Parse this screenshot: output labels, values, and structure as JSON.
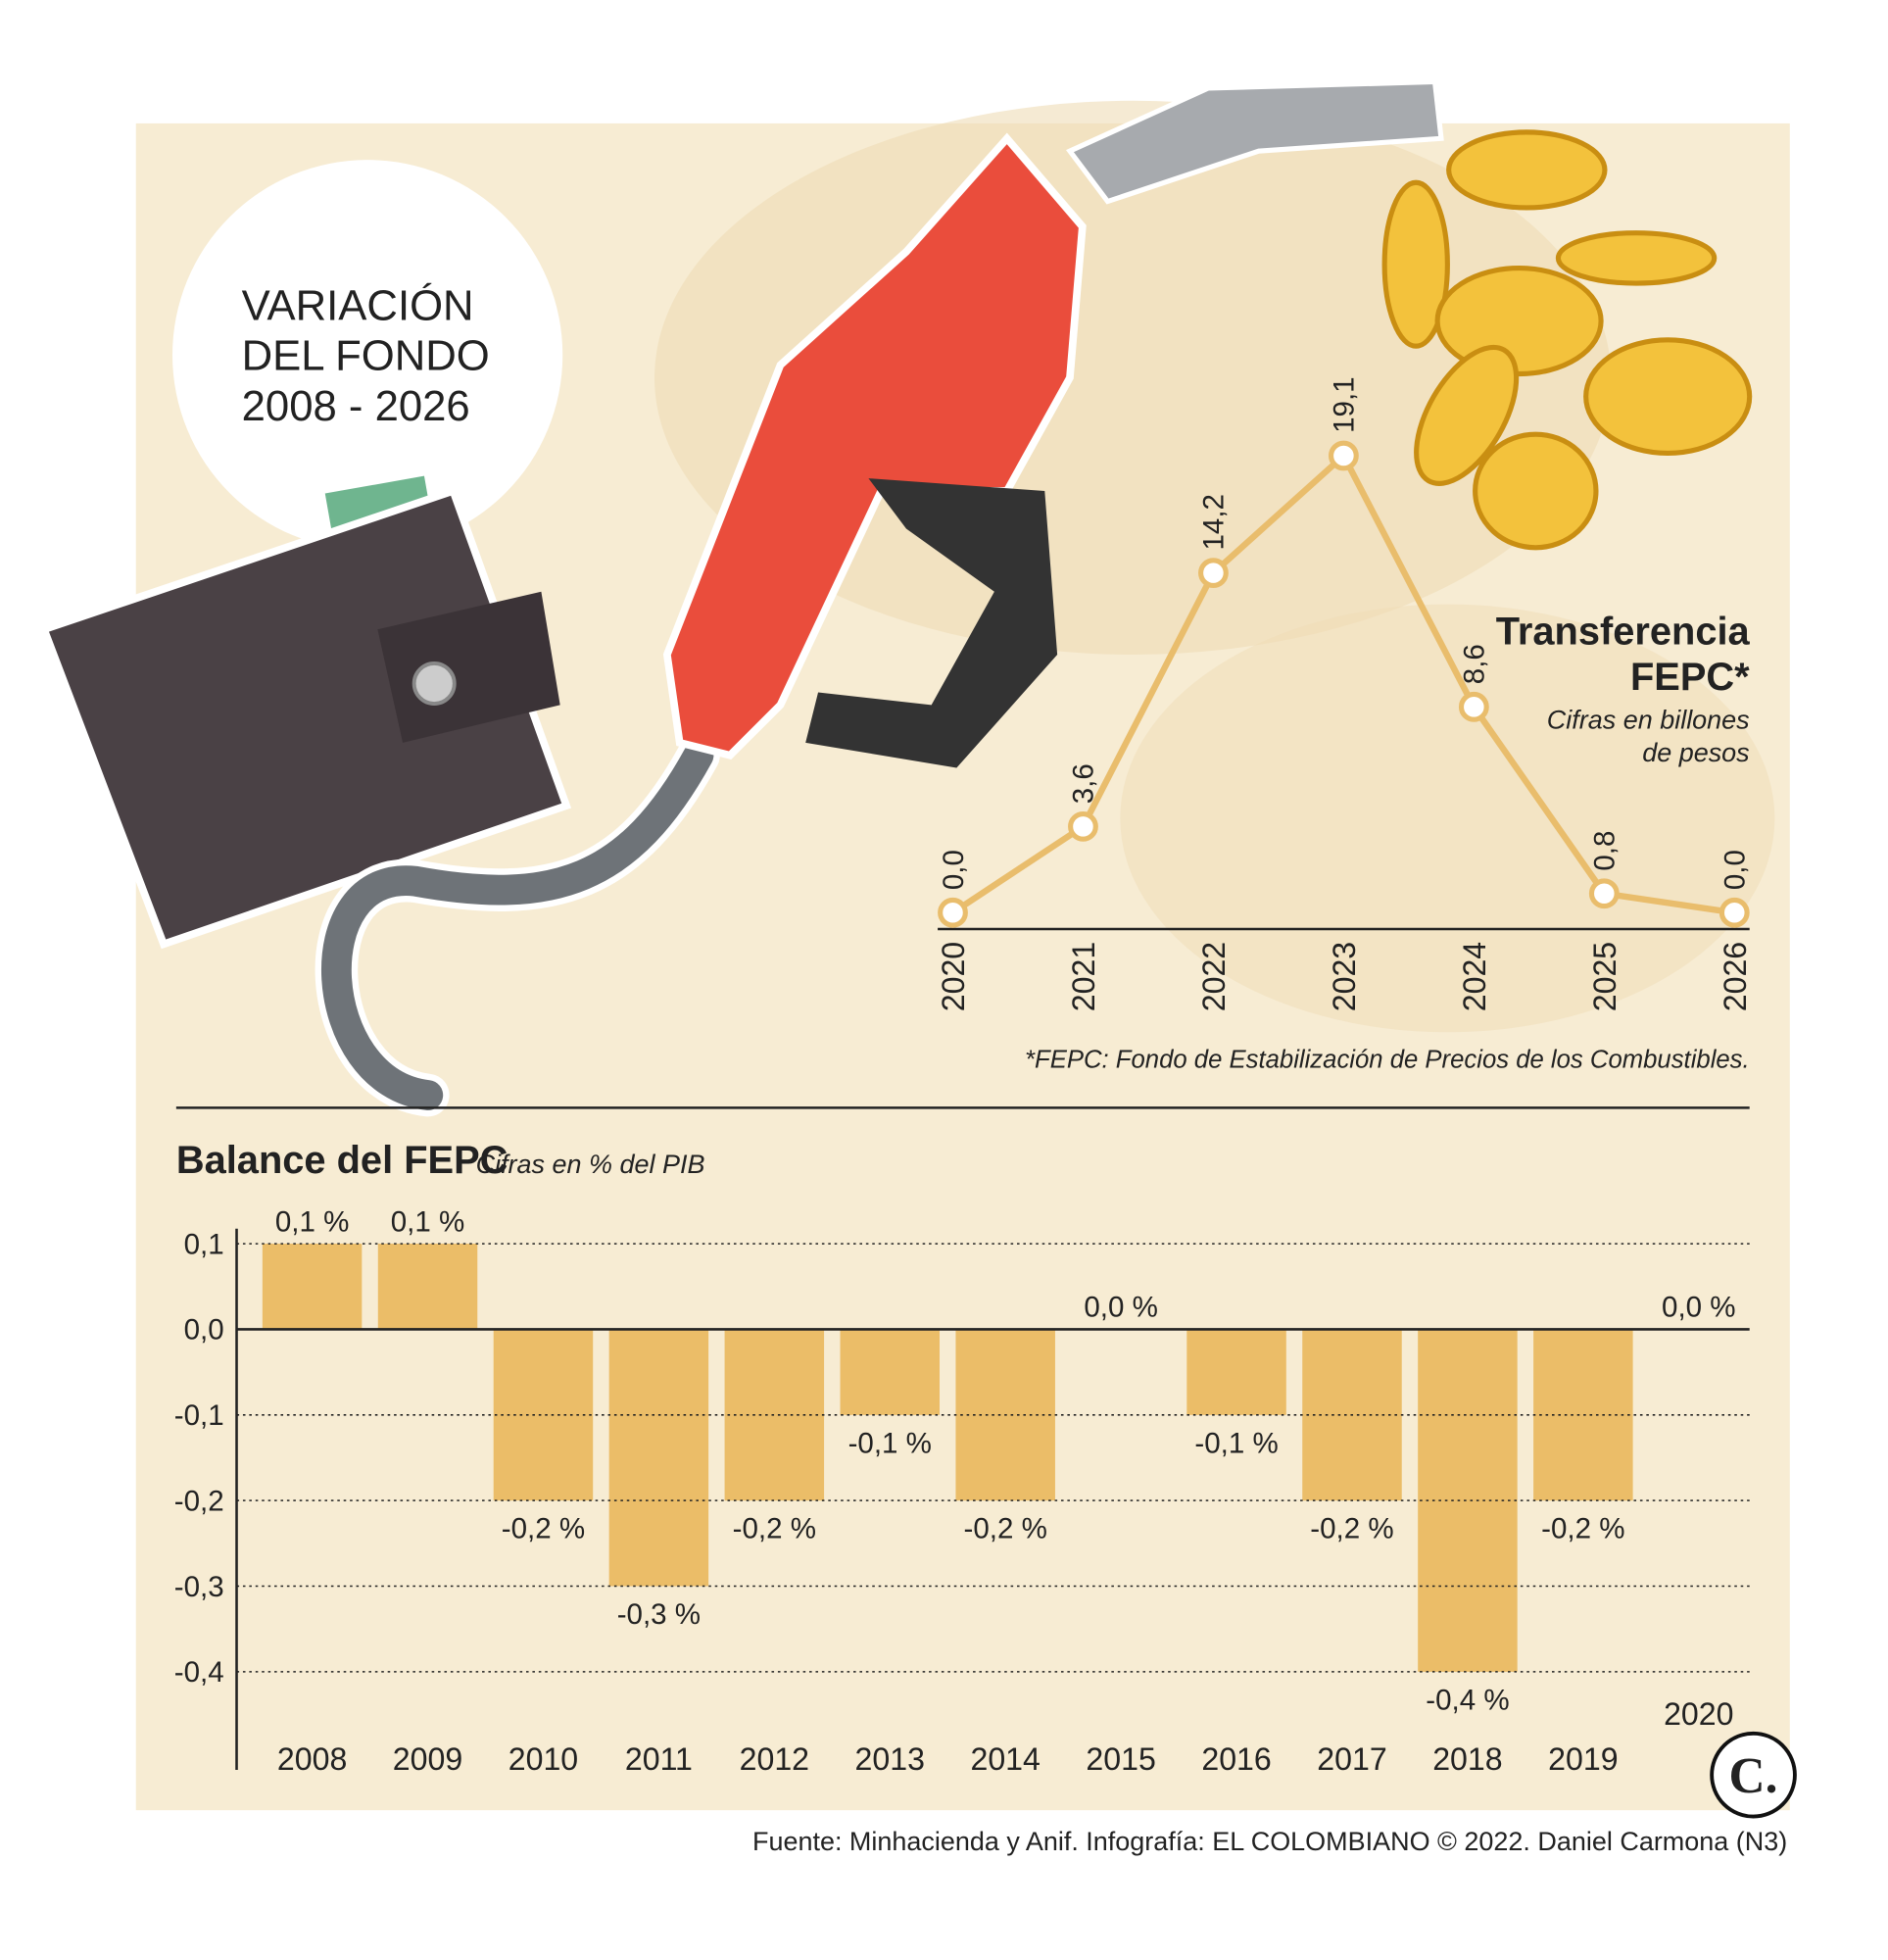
{
  "header": {
    "title": [
      "VARIACIÓN",
      "DEL FONDO",
      "2008 - 2026"
    ]
  },
  "chart_data": [
    {
      "type": "line",
      "title": [
        "Transferencia",
        "FEPC*"
      ],
      "subtitle": [
        "Cifras en billones",
        "de pesos"
      ],
      "note": "*FEPC: Fondo de Estabilización de Precios de los Combustibles.",
      "categories": [
        "2020",
        "2021",
        "2022",
        "2023",
        "2024",
        "2025",
        "2026"
      ],
      "values": [
        0,
        3.6,
        14.2,
        19.1,
        8.6,
        0.8,
        0
      ],
      "value_labels": [
        "0,0",
        "3,6",
        "14,2",
        "19,1",
        "8,6",
        "0,8",
        "0,0"
      ],
      "color": "#e9bd6c"
    },
    {
      "type": "bar",
      "title": "Balance del FEPC",
      "subtitle": "Cifras en % del PIB",
      "categories": [
        "2008",
        "2009",
        "2010",
        "2011",
        "2012",
        "2013",
        "2014",
        "2015",
        "2016",
        "2017",
        "2018",
        "2019",
        "2020"
      ],
      "values": [
        0.1,
        0.1,
        -0.2,
        -0.3,
        -0.2,
        -0.1,
        -0.2,
        0,
        -0.1,
        -0.2,
        -0.4,
        -0.2,
        0
      ],
      "value_labels": [
        "0,1 %",
        "0,1 %",
        "-0,2 %",
        "-0,3 %",
        "-0,2 %",
        "-0,1 %",
        "-0,2 %",
        "0,0 %",
        "-0,1 %",
        "-0,2 %",
        "-0,4 %",
        "-0,2 %",
        "0,0 %"
      ],
      "color": "#ebbd68",
      "negative_label_color": "#c0392b",
      "ylim": [
        -0.5,
        0.1
      ],
      "yticks": [
        {
          "value": 0.1,
          "label": "0,1"
        },
        {
          "value": 0,
          "label": "0,0"
        },
        {
          "value": -0.1,
          "label": "-0,1"
        },
        {
          "value": -0.2,
          "label": "-0,2"
        },
        {
          "value": -0.3,
          "label": "-0,3"
        },
        {
          "value": -0.4,
          "label": "-0,4"
        }
      ],
      "grid": true
    }
  ],
  "footer": {
    "source": "Fuente: Minhacienda y Anif. Infografía: EL COLOMBIANO © 2022. Daniel Carmona (N3)",
    "logo": "C."
  }
}
